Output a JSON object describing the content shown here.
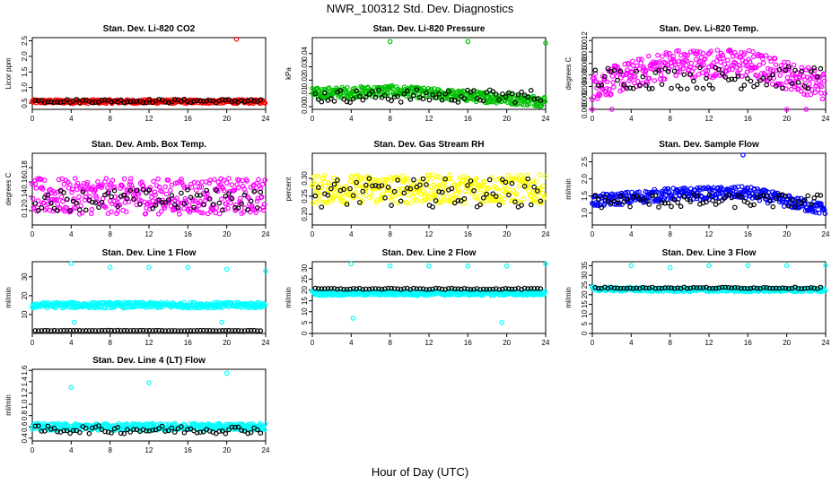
{
  "page_title": "NWR_100312  Std. Dev. Diagnostics",
  "x_axis_label": "Hour of Day (UTC)",
  "colors": {
    "ref": "#000000",
    "red": "#ff0000",
    "green": "#00c000",
    "magenta": "#ff00ff",
    "yellow": "#ffff00",
    "blue": "#0000ff",
    "cyan": "#00ffff"
  },
  "chart_data": [
    {
      "type": "scatter",
      "title": "Stan. Dev. Li-820 CO2",
      "ylabel": "Licor ppm",
      "color": "red",
      "xlim": [
        0,
        24
      ],
      "ylim": [
        0.3,
        2.6
      ],
      "xticks": [
        "0",
        "4",
        "8",
        "12",
        "16",
        "20",
        "24"
      ],
      "yticks": [
        "0.5",
        "1.0",
        "1.5",
        "2.0",
        "2.5"
      ],
      "ytick_values": [
        0.5,
        1.0,
        1.5,
        2.0,
        2.5
      ],
      "series_center": [
        0.55,
        0.55,
        0.55,
        0.55
      ],
      "series_spread": 0.06,
      "ref_center": 0.57,
      "ref_spread": 0.06,
      "outliers": [
        [
          21,
          2.55
        ]
      ]
    },
    {
      "type": "scatter",
      "title": "Stan. Dev. Li-820 Pressure",
      "ylabel": "kPa",
      "color": "green",
      "xlim": [
        0,
        24
      ],
      "ylim": [
        -0.002,
        0.052
      ],
      "xticks": [
        "0",
        "4",
        "8",
        "12",
        "16",
        "20",
        "24"
      ],
      "yticks": [
        "0.00",
        "0.01",
        "0.02",
        "0.03",
        "0.04"
      ],
      "ytick_values": [
        0,
        0.01,
        0.02,
        0.03,
        0.04
      ],
      "series_center": [
        0.01,
        0.012,
        0.008,
        0.004
      ],
      "series_spread": 0.004,
      "ref_center": 0.008,
      "ref_spread": 0.005,
      "outliers": [
        [
          8,
          0.049
        ],
        [
          16,
          0.049
        ],
        [
          24,
          0.048
        ]
      ]
    },
    {
      "type": "scatter",
      "title": "Stan. Dev. Li-820 Temp.",
      "ylabel": "degrees C",
      "color": "magenta",
      "xlim": [
        0,
        24
      ],
      "ylim": [
        0,
        0.0125
      ],
      "xticks": [
        "0",
        "4",
        "8",
        "12",
        "16",
        "20",
        "24"
      ],
      "yticks": [
        "0.000",
        "0.002",
        "0.004",
        "0.006",
        "0.008",
        "0.010",
        "0.012"
      ],
      "ytick_values": [
        0,
        0.002,
        0.004,
        0.006,
        0.008,
        0.01,
        0.012
      ],
      "series_center": [
        0.004,
        0.008,
        0.008,
        0.004
      ],
      "series_spread": 0.0025,
      "ref_center": 0.0055,
      "ref_spread": 0.002,
      "outliers": [
        [
          0,
          0
        ],
        [
          2,
          0
        ],
        [
          20,
          0
        ],
        [
          22,
          0
        ]
      ]
    },
    {
      "type": "scatter",
      "title": "Stan. Dev. Amb. Box Temp.",
      "ylabel": "degrees C",
      "color": "magenta",
      "xlim": [
        0,
        24
      ],
      "ylim": [
        0.1,
        0.2
      ],
      "xticks": [
        "0",
        "4",
        "8",
        "12",
        "16",
        "20",
        "24"
      ],
      "yticks": [
        "0.12",
        "0.14",
        "0.16",
        "0.18"
      ],
      "ytick_values": [
        0.12,
        0.14,
        0.16,
        0.18
      ],
      "series_center": [
        0.14,
        0.14,
        0.14,
        0.14
      ],
      "series_spread": 0.025,
      "ref_center": 0.135,
      "ref_spread": 0.015,
      "outliers": []
    },
    {
      "type": "scatter",
      "title": "Stan. Dev. Gas Stream RH",
      "ylabel": "percent",
      "color": "yellow",
      "xlim": [
        0,
        24
      ],
      "ylim": [
        0.17,
        0.37
      ],
      "xticks": [
        "0",
        "4",
        "8",
        "12",
        "16",
        "20",
        "24"
      ],
      "yticks": [
        "0.20",
        "0.25",
        "0.30"
      ],
      "ytick_values": [
        0.2,
        0.25,
        0.3
      ],
      "series_center": [
        0.27,
        0.27,
        0.27,
        0.27
      ],
      "series_spread": 0.04,
      "ref_center": 0.26,
      "ref_spread": 0.04,
      "outliers": []
    },
    {
      "type": "scatter",
      "title": "Stan. Dev. Sample Flow",
      "ylabel": "ml/min",
      "color": "blue",
      "xlim": [
        0,
        24
      ],
      "ylim": [
        0.65,
        2.75
      ],
      "xticks": [
        "0",
        "4",
        "8",
        "12",
        "16",
        "20",
        "24"
      ],
      "yticks": [
        "1.0",
        "1.5",
        "2.0",
        "2.5"
      ],
      "ytick_values": [
        1.0,
        1.5,
        2.0,
        2.5
      ],
      "series_center": [
        1.35,
        1.55,
        1.6,
        1.1
      ],
      "series_spread": 0.18,
      "ref_center": 1.35,
      "ref_spread": 0.2,
      "outliers": [
        [
          15.5,
          2.7
        ]
      ]
    },
    {
      "type": "scatter",
      "title": "Stan. Dev. Line 1 Flow",
      "ylabel": "ml/min",
      "color": "cyan",
      "xlim": [
        0,
        24
      ],
      "ylim": [
        0,
        38
      ],
      "xticks": [
        "0",
        "4",
        "8",
        "12",
        "16",
        "20",
        "24"
      ],
      "yticks": [
        "10",
        "20",
        "30"
      ],
      "ytick_values": [
        10,
        20,
        30
      ],
      "series_center": [
        15,
        15,
        15,
        15
      ],
      "series_spread": 1.5,
      "ref_center": 1.5,
      "ref_spread": 0.1,
      "outliers": [
        [
          4,
          37
        ],
        [
          8,
          35
        ],
        [
          12,
          35
        ],
        [
          16,
          35
        ],
        [
          20,
          34
        ],
        [
          24,
          33
        ],
        [
          4.3,
          6
        ],
        [
          19.5,
          6
        ]
      ]
    },
    {
      "type": "scatter",
      "title": "Stan. Dev. Line 2 Flow",
      "ylabel": "ml/min",
      "color": "cyan",
      "xlim": [
        0,
        24
      ],
      "ylim": [
        0,
        33
      ],
      "xticks": [
        "0",
        "4",
        "8",
        "12",
        "16",
        "20",
        "24"
      ],
      "yticks": [
        "0",
        "5",
        "10",
        "15",
        "20",
        "25",
        "30"
      ],
      "ytick_values": [
        0,
        5,
        10,
        15,
        20,
        25,
        30
      ],
      "series_center": [
        18.5,
        18.5,
        18.5,
        18.5
      ],
      "series_spread": 1.0,
      "ref_center": 20.5,
      "ref_spread": 0.3,
      "outliers": [
        [
          4,
          32
        ],
        [
          8,
          31
        ],
        [
          12,
          31
        ],
        [
          16,
          31
        ],
        [
          20,
          31
        ],
        [
          24,
          32
        ],
        [
          4.2,
          7
        ],
        [
          19.5,
          5
        ]
      ]
    },
    {
      "type": "scatter",
      "title": "Stan. Dev. Line 3 Flow",
      "ylabel": "ml/min",
      "color": "cyan",
      "xlim": [
        0,
        24
      ],
      "ylim": [
        0,
        37
      ],
      "xticks": [
        "0",
        "4",
        "8",
        "12",
        "16",
        "20",
        "24"
      ],
      "yticks": [
        "0",
        "5",
        "10",
        "15",
        "20",
        "25",
        "30",
        "35"
      ],
      "ytick_values": [
        0,
        5,
        10,
        15,
        20,
        25,
        30,
        35
      ],
      "series_center": [
        23,
        22.5,
        22.5,
        22.5
      ],
      "series_spread": 1.0,
      "ref_center": 23.5,
      "ref_spread": 0.4,
      "outliers": [
        [
          4,
          35
        ],
        [
          8,
          34
        ],
        [
          12,
          35
        ],
        [
          16,
          35
        ],
        [
          20,
          35
        ],
        [
          24,
          35
        ]
      ]
    },
    {
      "type": "scatter",
      "title": "Stan. Dev. Line 4 (LT) Flow",
      "ylabel": "ml/min",
      "color": "cyan",
      "xlim": [
        0,
        24
      ],
      "ylim": [
        0.35,
        1.62
      ],
      "xticks": [
        "0",
        "4",
        "8",
        "12",
        "16",
        "20",
        "24"
      ],
      "yticks": [
        "0.4",
        "0.6",
        "0.8",
        "1.0",
        "1.2",
        "1.4",
        "1.6"
      ],
      "ytick_values": [
        0.4,
        0.6,
        0.8,
        1.0,
        1.2,
        1.4,
        1.6
      ],
      "series_center": [
        0.6,
        0.6,
        0.6,
        0.6
      ],
      "series_spread": 0.06,
      "ref_center": 0.55,
      "ref_spread": 0.07,
      "outliers": [
        [
          4,
          1.3
        ],
        [
          12,
          1.38
        ],
        [
          20,
          1.55
        ]
      ]
    }
  ]
}
